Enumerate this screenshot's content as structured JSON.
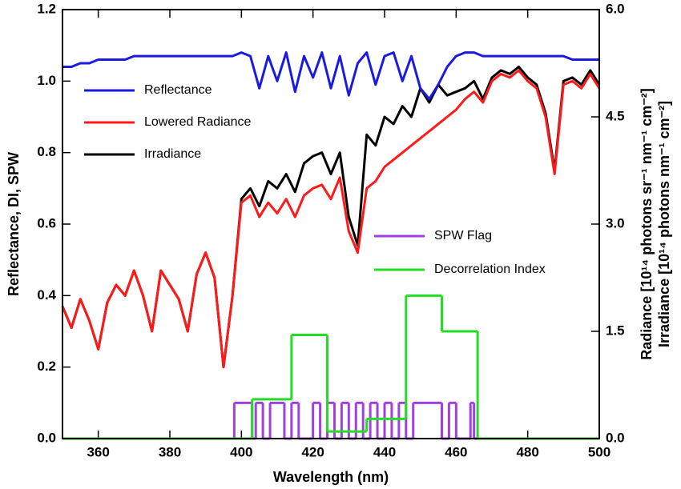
{
  "chart_data": {
    "type": "line",
    "x_label": "Wavelength (nm)",
    "y_label": "Reflectance, DI, SPW",
    "y2_label": [
      "Radiance [10¹⁴ photons sr⁻¹ nm⁻¹ cm⁻²]",
      "Irradiance [10¹⁴ photons nm⁻¹ cm⁻²]"
    ],
    "xlim": [
      350,
      500
    ],
    "xticks": [
      360,
      380,
      400,
      420,
      440,
      460,
      480,
      500
    ],
    "ylim": [
      0,
      1.2
    ],
    "yticks": [
      {
        "value": 0,
        "label": "0.0"
      },
      0.2,
      0.4,
      0.6,
      0.8,
      {
        "value": 1,
        "label": "1.0"
      },
      1.2
    ],
    "y2lim": [
      0,
      6
    ],
    "y2ticks": [
      {
        "value": 0,
        "label": "0.0"
      },
      1.5,
      {
        "value": 3,
        "label": "3.0"
      },
      4.5,
      {
        "value": 6,
        "label": "6.0"
      }
    ],
    "grid": false,
    "x": [
      350,
      352.5,
      355,
      357.5,
      360,
      362.5,
      365,
      367.5,
      370,
      372.5,
      375,
      377.5,
      380,
      382.5,
      385,
      387.5,
      390,
      392.5,
      395,
      397.5,
      400,
      402.5,
      405,
      407.5,
      410,
      412.5,
      415,
      417.5,
      420,
      422.5,
      425,
      427.5,
      430,
      432.5,
      435,
      437.5,
      440,
      442.5,
      445,
      447.5,
      450,
      452.5,
      455,
      457.5,
      460,
      462.5,
      465,
      467.5,
      470,
      472.5,
      475,
      477.5,
      480,
      482.5,
      485,
      487.5,
      490,
      492.5,
      495,
      497.5,
      500
    ],
    "series": [
      {
        "name": "Irradiance",
        "color": "#000000",
        "axis": "y2",
        "values": [
          1.85,
          1.55,
          1.95,
          1.65,
          1.25,
          1.9,
          2.15,
          2.0,
          2.35,
          2.0,
          1.5,
          2.35,
          2.15,
          1.95,
          1.5,
          2.3,
          2.6,
          2.25,
          1.0,
          2.0,
          3.35,
          3.5,
          3.25,
          3.6,
          3.5,
          3.7,
          3.45,
          3.85,
          3.95,
          4.0,
          3.7,
          4.0,
          3.1,
          2.7,
          4.25,
          4.1,
          4.5,
          4.4,
          4.65,
          4.5,
          4.9,
          4.7,
          4.95,
          4.8,
          4.85,
          4.9,
          5.0,
          4.75,
          5.05,
          5.15,
          5.1,
          5.2,
          5.05,
          4.95,
          4.55,
          3.75,
          5.0,
          5.05,
          4.95,
          5.15,
          4.95
        ]
      },
      {
        "name": "Lowered Radiance",
        "color": "#ff1a1a",
        "axis": "y2",
        "values": [
          1.85,
          1.55,
          1.95,
          1.65,
          1.25,
          1.9,
          2.15,
          2.0,
          2.35,
          2.0,
          1.5,
          2.35,
          2.15,
          1.95,
          1.5,
          2.3,
          2.6,
          2.25,
          1.0,
          2.0,
          3.3,
          3.4,
          3.1,
          3.3,
          3.15,
          3.35,
          3.1,
          3.4,
          3.5,
          3.55,
          3.35,
          3.65,
          2.9,
          2.6,
          3.5,
          3.6,
          3.8,
          3.9,
          4.0,
          4.1,
          4.2,
          4.3,
          4.4,
          4.5,
          4.6,
          4.75,
          4.85,
          4.7,
          5.0,
          5.1,
          5.05,
          5.15,
          5.0,
          4.9,
          4.5,
          3.7,
          4.95,
          5.0,
          4.9,
          5.1,
          4.9
        ]
      },
      {
        "name": "Reflectance",
        "color": "#1a1ae0",
        "values": [
          1.04,
          1.04,
          1.05,
          1.05,
          1.06,
          1.06,
          1.06,
          1.06,
          1.07,
          1.07,
          1.07,
          1.07,
          1.07,
          1.07,
          1.07,
          1.07,
          1.07,
          1.07,
          1.07,
          1.07,
          1.08,
          1.07,
          0.98,
          1.07,
          1.0,
          1.08,
          0.97,
          1.07,
          1.01,
          1.08,
          0.98,
          1.07,
          0.96,
          1.05,
          1.08,
          0.99,
          1.07,
          1.08,
          1.0,
          1.07,
          0.98,
          0.95,
          0.99,
          1.04,
          1.07,
          1.08,
          1.08,
          1.07,
          1.07,
          1.07,
          1.07,
          1.07,
          1.07,
          1.07,
          1.07,
          1.07,
          1.07,
          1.06,
          1.06,
          1.06,
          1.06
        ]
      },
      {
        "name": "SPW Flag",
        "color": "#a040e0",
        "step": true,
        "x": [
          350,
          398,
          403,
          404,
          406,
          408,
          412,
          414,
          416,
          420,
          422,
          424,
          426,
          428,
          430,
          432,
          434,
          436,
          438,
          440,
          442,
          444,
          446,
          448,
          456,
          458,
          460,
          464,
          465,
          500
        ],
        "values": [
          0,
          0.1,
          0,
          0.1,
          0,
          0.1,
          0,
          0.1,
          0,
          0.1,
          0,
          0.1,
          0,
          0.1,
          0,
          0.1,
          0,
          0.1,
          0,
          0.1,
          0,
          0.1,
          0,
          0.1,
          0,
          0.1,
          0,
          0.1,
          0,
          0
        ]
      },
      {
        "name": "Decorrelation Index",
        "color": "#22dd22",
        "step": true,
        "x": [
          350,
          403,
          414,
          424,
          435,
          446,
          456,
          466,
          500
        ],
        "values": [
          0,
          0.11,
          0.29,
          0.02,
          0.055,
          0.4,
          0.3,
          0,
          0
        ]
      }
    ]
  }
}
